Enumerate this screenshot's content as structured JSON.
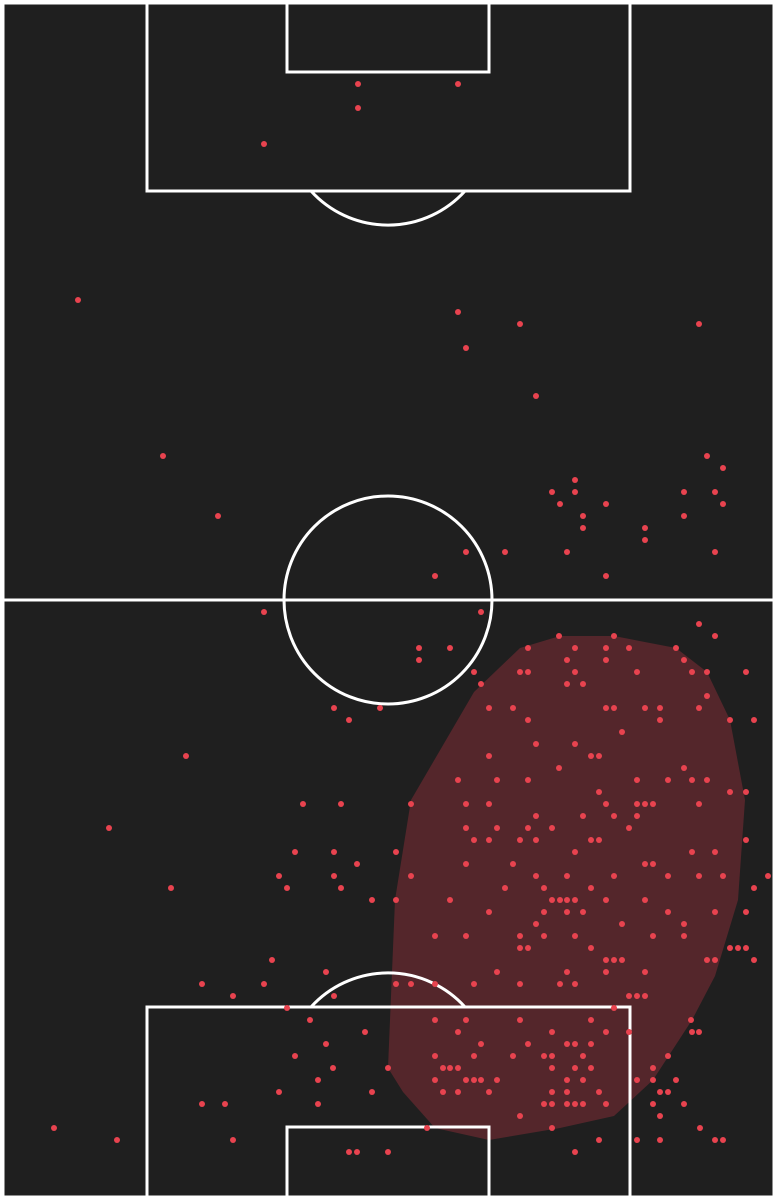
{
  "chart_data": {
    "type": "scatter",
    "color": "#e8434f",
    "hull_color": "#6b2a30",
    "xlim": [
      3,
      774
    ],
    "ylim": [
      1197,
      3
    ],
    "x": [
      358,
      458,
      358,
      264,
      78,
      458,
      520,
      699,
      466,
      536,
      163,
      707,
      723,
      575,
      552,
      575,
      684,
      715,
      560,
      606,
      723,
      583,
      684,
      218,
      583,
      645,
      645,
      466,
      505,
      567,
      715,
      435,
      606,
      264,
      481,
      699,
      715,
      559,
      614,
      528,
      575,
      606,
      629,
      676,
      419,
      450,
      419,
      567,
      606,
      684,
      520,
      528,
      575,
      637,
      692,
      474,
      567,
      583,
      707,
      746,
      481,
      707,
      334,
      380,
      489,
      513,
      606,
      614,
      645,
      660,
      699,
      349,
      528,
      660,
      730,
      754,
      622,
      536,
      575,
      186,
      591,
      599,
      684,
      559,
      489,
      458,
      497,
      528,
      637,
      668,
      692,
      707,
      746,
      599,
      730,
      606,
      637,
      645,
      653,
      699,
      303,
      341,
      411,
      466,
      489,
      583,
      614,
      637,
      536,
      109,
      466,
      497,
      528,
      552,
      629,
      474,
      489,
      520,
      536,
      591,
      599,
      746,
      295,
      334,
      396,
      575,
      692,
      715,
      466,
      513,
      645,
      653,
      357,
      279,
      334,
      411,
      536,
      567,
      614,
      668,
      699,
      723,
      768,
      171,
      287,
      341,
      505,
      544,
      591,
      754,
      372,
      396,
      450,
      552,
      560,
      567,
      575,
      606,
      645,
      715,
      489,
      544,
      567,
      583,
      668,
      746,
      536,
      622,
      684,
      435,
      466,
      520,
      544,
      575,
      653,
      684,
      520,
      528,
      591,
      730,
      738,
      746,
      272,
      606,
      614,
      622,
      707,
      715,
      754,
      497,
      567,
      606,
      645,
      326,
      202,
      264,
      396,
      411,
      435,
      474,
      520,
      560,
      575,
      629,
      637,
      645,
      233,
      334,
      287,
      614,
      310,
      435,
      466,
      520,
      591,
      691,
      365,
      458,
      552,
      606,
      629,
      692,
      699,
      326,
      481,
      528,
      567,
      575,
      591,
      295,
      435,
      474,
      513,
      544,
      552,
      583,
      668,
      388,
      333,
      443,
      450,
      458,
      552,
      575,
      591,
      653,
      318,
      435,
      466,
      474,
      481,
      497,
      567,
      583,
      637,
      653,
      676,
      279,
      372,
      443,
      458,
      489,
      552,
      567,
      599,
      660,
      668,
      202,
      225,
      318,
      544,
      552,
      567,
      575,
      583,
      606,
      653,
      684,
      660,
      520,
      54,
      427,
      552,
      700,
      117,
      233,
      599,
      637,
      660,
      715,
      723,
      349,
      357,
      388,
      575
    ],
    "y": [
      84,
      84,
      108,
      144,
      300,
      312,
      324,
      324,
      348,
      396,
      456,
      456,
      468,
      480,
      492,
      492,
      492,
      492,
      504,
      504,
      504,
      516,
      516,
      516,
      528,
      528,
      540,
      552,
      552,
      552,
      552,
      576,
      576,
      612,
      612,
      624,
      636,
      636,
      636,
      648,
      648,
      648,
      648,
      648,
      648,
      648,
      660,
      660,
      660,
      660,
      672,
      672,
      672,
      672,
      672,
      672,
      684,
      684,
      672,
      672,
      684,
      696,
      708,
      708,
      708,
      708,
      708,
      708,
      708,
      708,
      708,
      720,
      720,
      720,
      720,
      720,
      732,
      744,
      744,
      756,
      756,
      756,
      768,
      768,
      756,
      780,
      780,
      780,
      780,
      780,
      780,
      780,
      792,
      792,
      792,
      804,
      804,
      804,
      804,
      804,
      804,
      804,
      804,
      804,
      804,
      816,
      816,
      816,
      816,
      828,
      828,
      828,
      828,
      828,
      828,
      840,
      840,
      840,
      840,
      840,
      840,
      840,
      852,
      852,
      852,
      852,
      852,
      852,
      864,
      864,
      864,
      864,
      864,
      876,
      876,
      876,
      876,
      876,
      876,
      876,
      876,
      876,
      876,
      888,
      888,
      888,
      888,
      888,
      888,
      888,
      900,
      900,
      900,
      900,
      900,
      900,
      900,
      900,
      900,
      912,
      912,
      912,
      912,
      912,
      912,
      912,
      924,
      924,
      924,
      936,
      936,
      936,
      936,
      936,
      936,
      936,
      948,
      948,
      948,
      948,
      948,
      948,
      960,
      960,
      960,
      960,
      960,
      960,
      960,
      972,
      972,
      972,
      972,
      972,
      984,
      984,
      984,
      984,
      984,
      984,
      984,
      984,
      984,
      996,
      996,
      996,
      996,
      996,
      1008,
      1008,
      1020,
      1020,
      1020,
      1020,
      1020,
      1020,
      1032,
      1032,
      1032,
      1032,
      1032,
      1032,
      1032,
      1044,
      1044,
      1044,
      1044,
      1044,
      1044,
      1056,
      1056,
      1056,
      1056,
      1056,
      1056,
      1056,
      1056,
      1068,
      1068,
      1068,
      1068,
      1068,
      1068,
      1068,
      1068,
      1068,
      1080,
      1080,
      1080,
      1080,
      1080,
      1080,
      1080,
      1080,
      1080,
      1080,
      1080,
      1092,
      1092,
      1092,
      1092,
      1092,
      1092,
      1092,
      1092,
      1092,
      1092,
      1104,
      1104,
      1104,
      1104,
      1104,
      1104,
      1104,
      1104,
      1104,
      1104,
      1104,
      1116,
      1116,
      1128,
      1128,
      1128,
      1128,
      1140,
      1140,
      1140,
      1140,
      1140,
      1140,
      1140,
      1152,
      1152,
      1152,
      1152
    ],
    "hull": {
      "x": [
        388,
        395,
        411,
        474,
        520,
        560,
        614,
        676,
        707,
        730,
        745,
        738,
        715,
        692,
        653,
        614,
        560,
        489,
        435,
        403
      ],
      "y": [
        1068,
        900,
        800,
        692,
        648,
        636,
        636,
        648,
        672,
        720,
        800,
        900,
        976,
        1020,
        1080,
        1116,
        1128,
        1140,
        1128,
        1092
      ]
    }
  }
}
